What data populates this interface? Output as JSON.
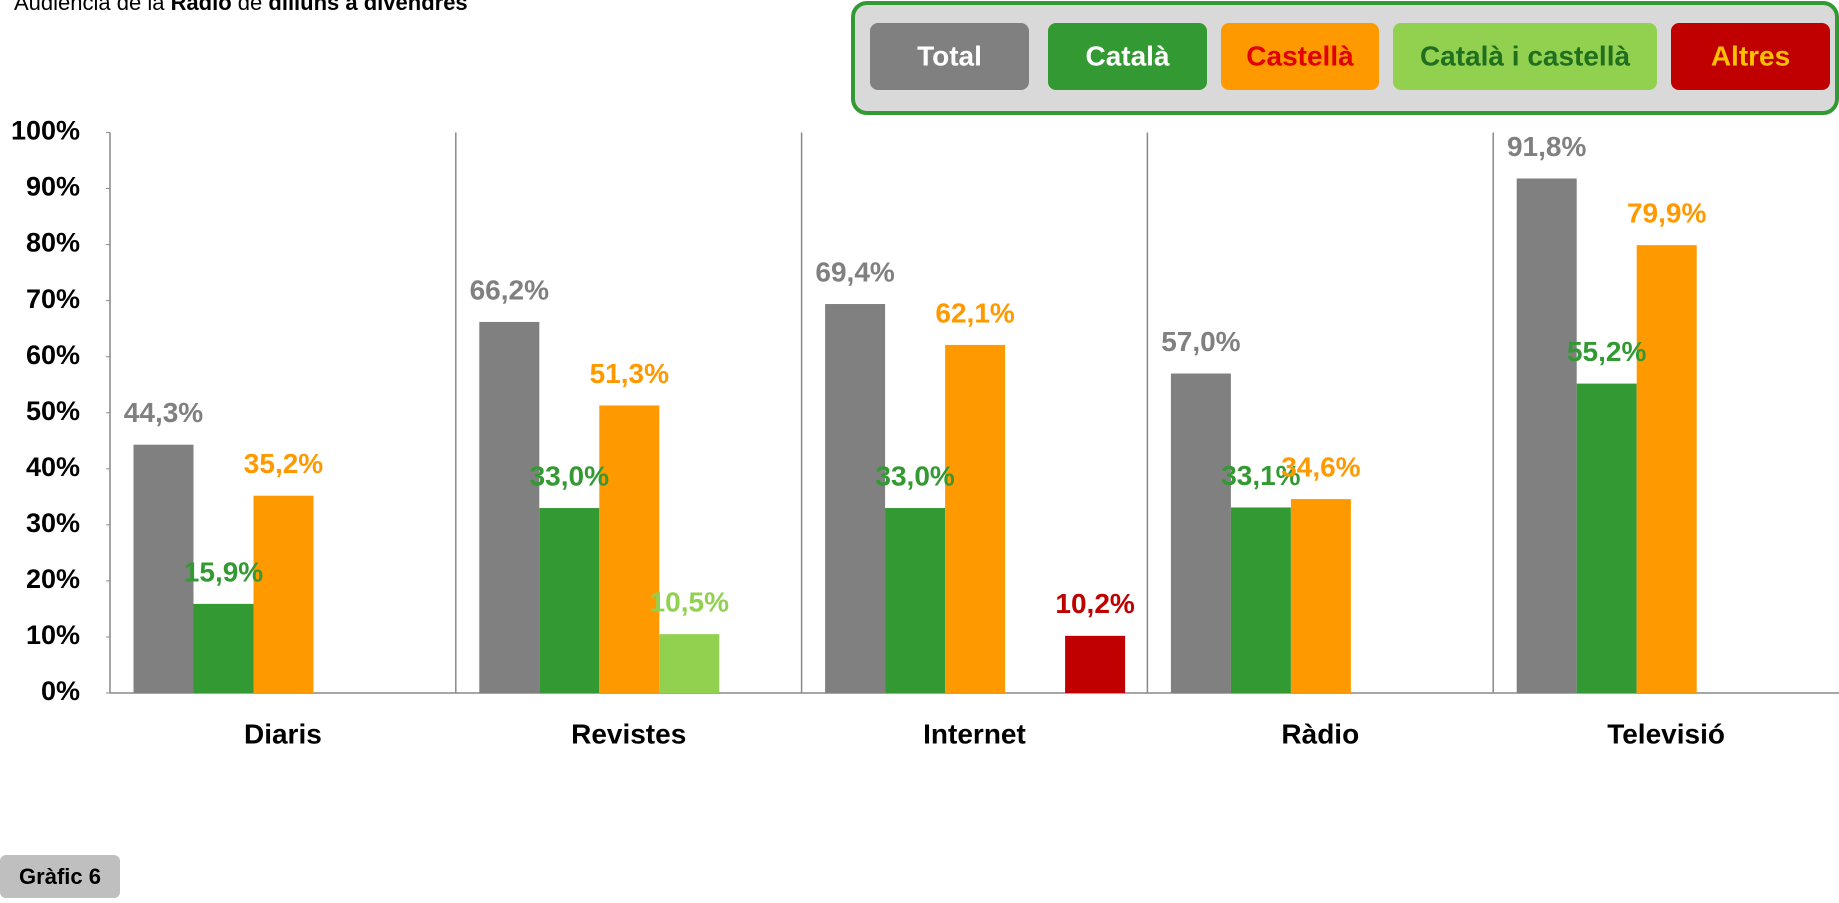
{
  "chart_data": {
    "type": "bar",
    "title": [
      "Audiència de la ",
      "Ràdio",
      " de ",
      "dilluns a divendres"
    ],
    "footnote": "Gràfic 6",
    "categories": [
      "Diaris",
      "Revistes",
      "Internet",
      "Ràdio",
      "Televisió"
    ],
    "series": [
      {
        "name": "Total",
        "color": "#808080",
        "label_color": "#ffffff",
        "values": [
          44.3,
          66.2,
          69.4,
          57.0,
          91.8
        ],
        "value_labels": [
          "44,3%",
          "66,2%",
          "69,4%",
          "57,0%",
          "91,8%"
        ]
      },
      {
        "name": "Català",
        "color": "#339933",
        "label_color": "#ffffff",
        "values": [
          15.9,
          33.0,
          33.0,
          33.1,
          55.2
        ],
        "value_labels": [
          "15,9%",
          "33,0%",
          "33,0%",
          "33,1%",
          "55,2%"
        ]
      },
      {
        "name": "Castellà",
        "color": "#ff9900",
        "label_color": "#e00000",
        "values": [
          35.2,
          51.3,
          62.1,
          34.6,
          79.9
        ],
        "value_labels": [
          "35,2%",
          "51,3%",
          "62,1%",
          "34,6%",
          "79,9%"
        ]
      },
      {
        "name": "Català i castellà",
        "color": "#92d050",
        "label_color": "#1f6f1f",
        "values": [
          null,
          10.5,
          null,
          null,
          null
        ],
        "value_labels": [
          null,
          "10,5%",
          null,
          null,
          null
        ]
      },
      {
        "name": "Altres",
        "color": "#c00000",
        "label_color": "#ffc000",
        "values": [
          null,
          null,
          10.2,
          null,
          null
        ],
        "value_labels": [
          null,
          null,
          "10,2%",
          null,
          null
        ]
      }
    ],
    "ylim": [
      0,
      100
    ],
    "yticks": [
      {
        "value": 0,
        "label": "0%"
      },
      {
        "value": 10,
        "label": "10%"
      },
      {
        "value": 20,
        "label": "20%"
      },
      {
        "value": 30,
        "label": "30%"
      },
      {
        "value": 40,
        "label": "40%"
      },
      {
        "value": 50,
        "label": "50%"
      },
      {
        "value": 60,
        "label": "60%"
      },
      {
        "value": 70,
        "label": "70%"
      },
      {
        "value": 80,
        "label": "80%"
      },
      {
        "value": 90,
        "label": "90%"
      },
      {
        "value": 100,
        "label": "100%"
      }
    ],
    "legend": "top-right"
  }
}
